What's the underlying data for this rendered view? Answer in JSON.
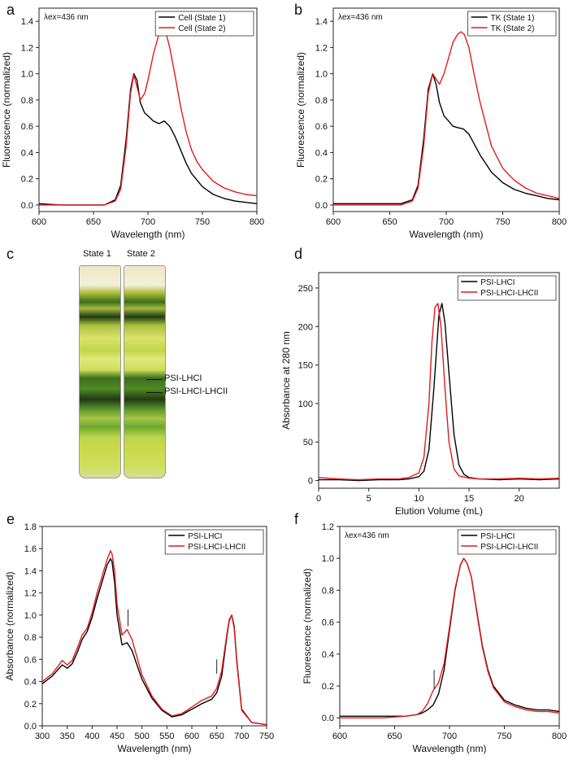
{
  "panels": {
    "a": "a",
    "b": "b",
    "c": "c",
    "d": "d",
    "e": "e",
    "f": "f"
  },
  "gel": {
    "tube_labels": [
      "State 1",
      "State 2"
    ],
    "band_labels": [
      "PSI-LHCI",
      "PSI-LHCI-LHCII"
    ],
    "colors": {
      "background": "#c9d84a",
      "green_band": "#3c6e1e",
      "dark_band": "#1f3b13",
      "top": "#efe7c4"
    }
  },
  "chart_data": [
    {
      "id": "a",
      "type": "line",
      "annotation": "λex=436 nm",
      "xlabel": "Wavelength (nm)",
      "ylabel": "Fluorescence (normalized)",
      "xlim": [
        600,
        800
      ],
      "ylim": [
        -0.05,
        1.5
      ],
      "xticks": [
        600,
        650,
        700,
        750,
        800
      ],
      "yticks": [
        0.0,
        0.2,
        0.4,
        0.6,
        0.8,
        1.0,
        1.2,
        1.4
      ],
      "legend": "top-right",
      "series": [
        {
          "name": "Cell (State 1)",
          "color": "#000000",
          "x": [
            600,
            620,
            640,
            660,
            670,
            675,
            680,
            684,
            687,
            690,
            693,
            697,
            700,
            705,
            710,
            715,
            720,
            725,
            730,
            735,
            740,
            745,
            750,
            760,
            770,
            780,
            790,
            800
          ],
          "y": [
            0.01,
            0.0,
            0.0,
            0.0,
            0.04,
            0.15,
            0.5,
            0.88,
            1.0,
            0.95,
            0.78,
            0.7,
            0.68,
            0.64,
            0.62,
            0.64,
            0.6,
            0.52,
            0.42,
            0.32,
            0.24,
            0.19,
            0.14,
            0.08,
            0.05,
            0.03,
            0.02,
            0.01
          ]
        },
        {
          "name": "Cell (State 2)",
          "color": "#e41a1c",
          "x": [
            600,
            620,
            640,
            660,
            670,
            675,
            680,
            684,
            687,
            690,
            693,
            697,
            700,
            705,
            710,
            713,
            716,
            720,
            725,
            730,
            735,
            740,
            745,
            750,
            760,
            770,
            780,
            790,
            800
          ],
          "y": [
            0.0,
            0.0,
            0.0,
            0.0,
            0.03,
            0.12,
            0.45,
            0.85,
            0.99,
            0.9,
            0.8,
            0.85,
            0.95,
            1.15,
            1.3,
            1.36,
            1.33,
            1.2,
            0.98,
            0.75,
            0.56,
            0.42,
            0.33,
            0.27,
            0.18,
            0.13,
            0.1,
            0.08,
            0.07
          ]
        }
      ]
    },
    {
      "id": "b",
      "type": "line",
      "annotation": "λex=436 nm",
      "xlabel": "Wavelength (nm)",
      "ylabel": "Fluorescence (normalized)",
      "xlim": [
        600,
        800
      ],
      "ylim": [
        -0.05,
        1.5
      ],
      "xticks": [
        600,
        650,
        700,
        750,
        800
      ],
      "yticks": [
        0.0,
        0.2,
        0.4,
        0.6,
        0.8,
        1.0,
        1.2,
        1.4
      ],
      "legend": "top-right",
      "series": [
        {
          "name": "TK (State 1)",
          "color": "#000000",
          "x": [
            600,
            620,
            640,
            660,
            670,
            675,
            680,
            684,
            688,
            691,
            694,
            698,
            702,
            706,
            710,
            715,
            720,
            725,
            730,
            740,
            750,
            760,
            770,
            780,
            790,
            800
          ],
          "y": [
            0.01,
            0.01,
            0.01,
            0.01,
            0.04,
            0.15,
            0.5,
            0.88,
            1.0,
            0.92,
            0.78,
            0.68,
            0.64,
            0.6,
            0.59,
            0.58,
            0.54,
            0.46,
            0.38,
            0.25,
            0.17,
            0.12,
            0.09,
            0.07,
            0.05,
            0.04
          ]
        },
        {
          "name": "TK (State 2)",
          "color": "#e41a1c",
          "x": [
            600,
            620,
            640,
            660,
            670,
            675,
            680,
            684,
            688,
            691,
            694,
            698,
            702,
            706,
            710,
            713,
            716,
            720,
            725,
            730,
            740,
            750,
            760,
            770,
            780,
            790,
            800
          ],
          "y": [
            0.0,
            0.0,
            0.0,
            0.0,
            0.03,
            0.13,
            0.45,
            0.85,
            1.0,
            0.96,
            0.92,
            1.0,
            1.12,
            1.24,
            1.3,
            1.32,
            1.3,
            1.2,
            0.98,
            0.78,
            0.45,
            0.28,
            0.19,
            0.13,
            0.09,
            0.07,
            0.05
          ]
        }
      ]
    },
    {
      "id": "d",
      "type": "line",
      "annotation": "",
      "xlabel": "Elution Volume (mL)",
      "ylabel": "Absorbance at 280 nm",
      "xlim": [
        0,
        24
      ],
      "ylim": [
        -10,
        270
      ],
      "xticks": [
        0,
        5,
        10,
        15,
        20
      ],
      "yticks": [
        0,
        50,
        100,
        150,
        200,
        250
      ],
      "legend": "top-right",
      "series": [
        {
          "name": "PSI-LHCI",
          "color": "#000000",
          "x": [
            0,
            2,
            4,
            6,
            8,
            9,
            10,
            10.5,
            11,
            11.5,
            12,
            12.3,
            12.6,
            13,
            13.5,
            14,
            14.5,
            15,
            16,
            18,
            20,
            22,
            24
          ],
          "y": [
            1,
            1,
            0,
            1,
            1,
            2,
            5,
            12,
            40,
            120,
            215,
            230,
            205,
            140,
            60,
            20,
            8,
            4,
            2,
            1,
            2,
            1,
            2
          ]
        },
        {
          "name": "PSI-LHCI-LHCII",
          "color": "#e41a1c",
          "x": [
            0,
            2,
            4,
            6,
            8,
            9,
            10,
            10.5,
            11,
            11.3,
            11.6,
            11.9,
            12.2,
            12.6,
            13,
            13.5,
            14,
            15,
            16,
            18,
            20,
            22,
            24
          ],
          "y": [
            4,
            2,
            1,
            2,
            2,
            4,
            10,
            30,
            100,
            180,
            225,
            230,
            200,
            120,
            50,
            15,
            6,
            3,
            2,
            2,
            3,
            2,
            3
          ]
        }
      ]
    },
    {
      "id": "e",
      "type": "line",
      "annotation": "",
      "xlabel": "Wavelength (nm)",
      "ylabel": "Absorbance (normalized)",
      "xlim": [
        300,
        750
      ],
      "ylim": [
        0.0,
        1.8
      ],
      "xticks": [
        300,
        350,
        400,
        450,
        500,
        550,
        600,
        650,
        700,
        750
      ],
      "yticks": [
        0.0,
        0.2,
        0.4,
        0.6,
        0.8,
        1.0,
        1.2,
        1.4,
        1.6,
        1.8
      ],
      "legend": "top-right",
      "markers": [
        {
          "x": 472,
          "y0": 0.9,
          "y1": 1.05
        },
        {
          "x": 650,
          "y0": 0.47,
          "y1": 0.6
        }
      ],
      "series": [
        {
          "name": "PSI-LHCI",
          "color": "#000000",
          "x": [
            300,
            320,
            330,
            340,
            350,
            360,
            370,
            380,
            390,
            400,
            410,
            420,
            430,
            437,
            440,
            445,
            450,
            460,
            470,
            480,
            490,
            500,
            520,
            540,
            560,
            580,
            600,
            620,
            640,
            650,
            660,
            670,
            675,
            680,
            685,
            690,
            700,
            720,
            750
          ],
          "y": [
            0.38,
            0.45,
            0.5,
            0.55,
            0.52,
            0.56,
            0.66,
            0.78,
            0.85,
            0.98,
            1.15,
            1.3,
            1.45,
            1.51,
            1.48,
            1.3,
            1.0,
            0.73,
            0.75,
            0.68,
            0.55,
            0.42,
            0.25,
            0.14,
            0.08,
            0.1,
            0.15,
            0.2,
            0.24,
            0.3,
            0.45,
            0.8,
            0.95,
            1.0,
            0.9,
            0.6,
            0.15,
            0.03,
            0.01
          ]
        },
        {
          "name": "PSI-LHCI-LHCII",
          "color": "#e41a1c",
          "x": [
            300,
            320,
            330,
            340,
            350,
            360,
            370,
            380,
            390,
            400,
            410,
            420,
            430,
            437,
            440,
            445,
            450,
            460,
            470,
            480,
            490,
            500,
            520,
            540,
            560,
            580,
            600,
            620,
            640,
            650,
            660,
            670,
            675,
            680,
            685,
            690,
            700,
            720,
            750
          ],
          "y": [
            0.4,
            0.47,
            0.53,
            0.59,
            0.55,
            0.59,
            0.7,
            0.82,
            0.88,
            1.02,
            1.2,
            1.35,
            1.5,
            1.58,
            1.55,
            1.4,
            1.1,
            0.82,
            0.87,
            0.78,
            0.62,
            0.46,
            0.27,
            0.15,
            0.09,
            0.11,
            0.17,
            0.23,
            0.27,
            0.34,
            0.5,
            0.82,
            0.96,
            1.0,
            0.88,
            0.58,
            0.14,
            0.03,
            0.01
          ]
        }
      ]
    },
    {
      "id": "f",
      "type": "line",
      "annotation": "λex=436 nm",
      "xlabel": "Wavelength (nm)",
      "ylabel": "Fluorescence (normalized)",
      "xlim": [
        600,
        800
      ],
      "ylim": [
        -0.05,
        1.2
      ],
      "xticks": [
        600,
        650,
        700,
        750,
        800
      ],
      "yticks": [
        0.0,
        0.2,
        0.4,
        0.6,
        0.8,
        1.0,
        1.2
      ],
      "legend": "top-right",
      "markers": [
        {
          "x": 686,
          "y0": 0.18,
          "y1": 0.3
        }
      ],
      "series": [
        {
          "name": "PSI-LHCI",
          "color": "#000000",
          "x": [
            600,
            620,
            640,
            660,
            670,
            675,
            680,
            685,
            690,
            695,
            700,
            705,
            710,
            713,
            716,
            720,
            725,
            730,
            735,
            740,
            750,
            760,
            770,
            780,
            790,
            800
          ],
          "y": [
            0.01,
            0.01,
            0.01,
            0.01,
            0.02,
            0.03,
            0.05,
            0.08,
            0.15,
            0.3,
            0.55,
            0.8,
            0.96,
            1.0,
            0.97,
            0.88,
            0.66,
            0.45,
            0.3,
            0.2,
            0.11,
            0.08,
            0.06,
            0.05,
            0.05,
            0.04
          ]
        },
        {
          "name": "PSI-LHCI-LHCII",
          "color": "#e41a1c",
          "x": [
            600,
            620,
            640,
            660,
            670,
            675,
            680,
            685,
            690,
            695,
            700,
            705,
            710,
            713,
            716,
            720,
            725,
            730,
            735,
            740,
            750,
            760,
            770,
            780,
            790,
            800
          ],
          "y": [
            0.0,
            0.0,
            0.0,
            0.01,
            0.02,
            0.04,
            0.09,
            0.17,
            0.22,
            0.34,
            0.57,
            0.81,
            0.96,
            1.0,
            0.97,
            0.88,
            0.65,
            0.44,
            0.29,
            0.19,
            0.1,
            0.07,
            0.05,
            0.04,
            0.04,
            0.03
          ]
        }
      ]
    }
  ]
}
